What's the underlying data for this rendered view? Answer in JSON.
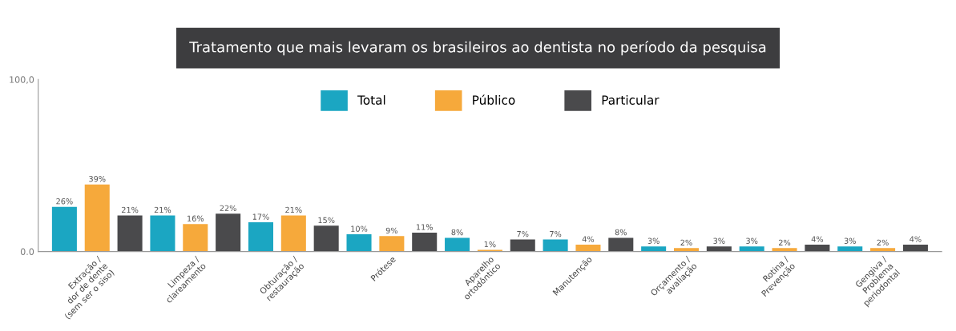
{
  "chart_data": {
    "type": "bar",
    "title": "Tratamento que mais levaram os brasileiros ao dentista no período da pesquisa",
    "categories": [
      "Extração /\ndor de dente\n(sem ser o siso)",
      "Limpeza /\nclareamento",
      "Obturação /\nrestauração",
      "Prótese",
      "Aparelho\nortodôntico",
      "Manutenção",
      "Orçamento /\navaliação",
      "Rotina /\nPrevenção",
      "Gengiva /\nProblema\nperiodontal"
    ],
    "series": [
      {
        "name": "Total",
        "color": "#1ba6c2",
        "values": [
          26,
          21,
          17,
          10,
          8,
          7,
          3,
          3,
          3
        ],
        "value_labels": [
          "26%",
          "21%",
          "17%",
          "10%",
          "8%",
          "7%",
          "3%",
          "3%",
          "3%"
        ]
      },
      {
        "name": "Público",
        "color": "#f6a93b",
        "values": [
          39,
          16,
          21,
          9,
          1,
          4,
          2,
          2,
          2
        ],
        "value_labels": [
          "39%",
          "16%",
          "21%",
          "9%",
          "1%",
          "4%",
          "2%",
          "2%",
          "2%"
        ]
      },
      {
        "name": "Particular",
        "color": "#4a4a4c",
        "values": [
          21,
          22,
          15,
          11,
          7,
          8,
          3,
          4,
          4
        ],
        "value_labels": [
          "21%",
          "22%",
          "15%",
          "11%",
          "7%",
          "8%",
          "3%",
          "4%",
          "4%"
        ]
      }
    ],
    "ylim": [
      0,
      100
    ],
    "yticks": [
      {
        "value": 0,
        "label": "0.0"
      },
      {
        "value": 100,
        "label": "100,0"
      }
    ],
    "legend": "top",
    "grid": false
  }
}
